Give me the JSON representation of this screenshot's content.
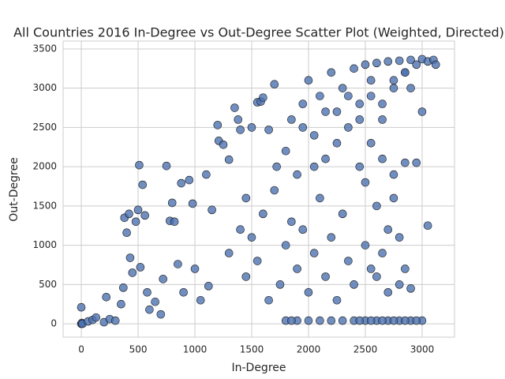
{
  "chart_data": {
    "type": "scatter",
    "title": "All Countries 2016 In-Degree vs Out-Degree Scatter Plot (Weighted, Directed)",
    "x_label": "In-Degree",
    "y_label": "Out-Degree",
    "color": "#4c72b0",
    "grid": true,
    "xlim": [
      -160,
      3285
    ],
    "ylim": [
      -170,
      3600
    ],
    "xticks": [
      0,
      500,
      1000,
      1500,
      2000,
      2500,
      3000
    ],
    "yticks": [
      0,
      500,
      1000,
      1500,
      2000,
      2500,
      3000,
      3500
    ],
    "x": [
      0,
      5,
      0,
      10,
      60,
      100,
      130,
      200,
      220,
      250,
      300,
      350,
      370,
      380,
      400,
      420,
      430,
      450,
      480,
      500,
      510,
      540,
      520,
      560,
      580,
      600,
      650,
      700,
      720,
      750,
      780,
      800,
      820,
      850,
      880,
      900,
      950,
      980,
      1000,
      1050,
      1100,
      1120,
      1150,
      1200,
      1210,
      1250,
      1300,
      1350,
      1380,
      1400,
      1450,
      1500,
      1550,
      1580,
      1600,
      1650,
      1700,
      1720,
      1300,
      1400,
      1450,
      1500,
      1550,
      1600,
      1650,
      1700,
      1750,
      1800,
      1850,
      1900,
      1950,
      2000,
      2050,
      2100,
      2150,
      2200,
      2250,
      2300,
      2350,
      2400,
      1800,
      1900,
      2000,
      2100,
      2200,
      2300,
      2400,
      2500,
      2600,
      2700,
      2800,
      2900,
      3000,
      2450,
      2550,
      2650,
      2750,
      2850,
      2950,
      1850,
      1800,
      1850,
      1900,
      1950,
      2000,
      2050,
      2100,
      2150,
      2200,
      2250,
      2300,
      2350,
      2400,
      2450,
      2500,
      2550,
      2600,
      2650,
      2700,
      2750,
      2800,
      2850,
      2900,
      2950,
      3000,
      3050,
      3100,
      3120,
      2900,
      3000,
      2450,
      2500,
      2550,
      2600,
      2650,
      2700,
      2750,
      2800,
      2850,
      2950,
      2500,
      2550,
      2600,
      2650,
      2700,
      2750,
      2800,
      2850,
      2900,
      3050,
      1950,
      2050,
      2150,
      2250,
      2350,
      2450,
      2550,
      2650,
      2750,
      2850
    ],
    "values": [
      0,
      10,
      210,
      0,
      30,
      50,
      80,
      20,
      340,
      60,
      40,
      250,
      460,
      1350,
      1160,
      1400,
      840,
      650,
      1300,
      1450,
      2020,
      1770,
      720,
      1380,
      400,
      180,
      280,
      120,
      570,
      2010,
      1310,
      1540,
      1300,
      760,
      1790,
      400,
      1830,
      1530,
      700,
      300,
      1900,
      480,
      1450,
      2530,
      2330,
      2280,
      2090,
      2750,
      2600,
      2470,
      1600,
      2500,
      2820,
      2830,
      2880,
      2470,
      3050,
      2000,
      900,
      1200,
      600,
      1100,
      800,
      1400,
      300,
      1700,
      500,
      1000,
      1300,
      700,
      1200,
      400,
      900,
      1600,
      600,
      1100,
      300,
      1400,
      800,
      500,
      40,
      40,
      40,
      40,
      40,
      40,
      40,
      40,
      40,
      40,
      40,
      40,
      40,
      40,
      40,
      40,
      40,
      40,
      40,
      40,
      2200,
      2600,
      1900,
      2800,
      3100,
      2400,
      2900,
      2100,
      3200,
      2700,
      3000,
      2500,
      3250,
      2800,
      3300,
      2900,
      3320,
      2600,
      3340,
      3100,
      3350,
      3200,
      3360,
      3300,
      3370,
      3340,
      3360,
      3300,
      3000,
      2700,
      2000,
      1800,
      2300,
      1500,
      2100,
      1200,
      1900,
      1100,
      2050,
      2050,
      1000,
      700,
      600,
      900,
      400,
      1600,
      500,
      700,
      450,
      1250,
      2500,
      2000,
      2700,
      2300,
      2900,
      2600,
      3100,
      2800,
      3000,
      3200
    ]
  }
}
